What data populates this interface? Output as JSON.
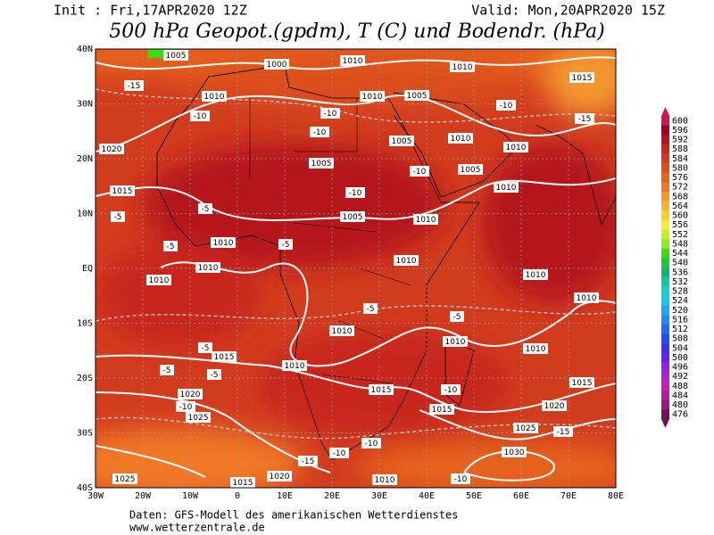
{
  "header": {
    "init": "Init : Fri,17APR2020 12Z",
    "valid": "Valid: Mon,20APR2020 15Z",
    "title": "500 hPa Geopot.(gpdm), T (C) und Bodendr. (hPa)"
  },
  "map": {
    "x_labels": [
      "30W",
      "20W",
      "10W",
      "0",
      "10E",
      "20E",
      "30E",
      "40E",
      "50E",
      "60E",
      "70E",
      "80E"
    ],
    "y_labels": [
      "40N",
      "30N",
      "20N",
      "10N",
      "EQ",
      "10S",
      "20S",
      "30S",
      "40S"
    ],
    "contour_labels": [
      "1005",
      "1000",
      "1010",
      "1005",
      "1010",
      "1010",
      "1015",
      "1010",
      "1020",
      "1005",
      "1005",
      "1010",
      "1010",
      "1005",
      "1010",
      "1015",
      "1005",
      "1010",
      "1010",
      "1010",
      "1010",
      "1010",
      "1010",
      "1010",
      "1010",
      "1010",
      "1010",
      "1015",
      "1010",
      "1015",
      "1015",
      "1020",
      "1020",
      "1015",
      "1025",
      "1025",
      "1030",
      "1020",
      "1025",
      "1015",
      "1010",
      "-15",
      "-10",
      "-10",
      "-10",
      "-10",
      "-15",
      "-10",
      "-10",
      "-5",
      "-5",
      "-5",
      "-5",
      "-5",
      "-5",
      "-5",
      "-5",
      "-5",
      "-10",
      "-10",
      "-15",
      "-10",
      "-10",
      "-10",
      "-15"
    ]
  },
  "colorbar": {
    "levels": [
      600,
      596,
      592,
      588,
      584,
      580,
      576,
      572,
      568,
      564,
      560,
      556,
      552,
      548,
      544,
      540,
      536,
      532,
      528,
      524,
      520,
      516,
      512,
      508,
      504,
      500,
      496,
      492,
      488,
      484,
      480,
      476
    ],
    "colors": [
      "#d21450",
      "#a0001e",
      "#b4141e",
      "#c8281e",
      "#d23c1e",
      "#dc501e",
      "#e6641e",
      "#f07828",
      "#f5962d",
      "#f5b432",
      "#f5d232",
      "#f0f032",
      "#c8f028",
      "#8cf01e",
      "#3cdc14",
      "#1ec83c",
      "#14b46e",
      "#14c8a0",
      "#14d2c8",
      "#14c8e6",
      "#1eaaf0",
      "#1e8cf0",
      "#1e6ef0",
      "#1e50f0",
      "#3c32f0",
      "#6e1ef0",
      "#961ee6",
      "#b41ed2",
      "#c81eb4",
      "#b41e96",
      "#961e78",
      "#6e1450"
    ]
  },
  "footer": {
    "source": "Daten: GFS-Modell des amerikanischen Wetterdienstes",
    "url": "www.wetterzentrale.de"
  }
}
